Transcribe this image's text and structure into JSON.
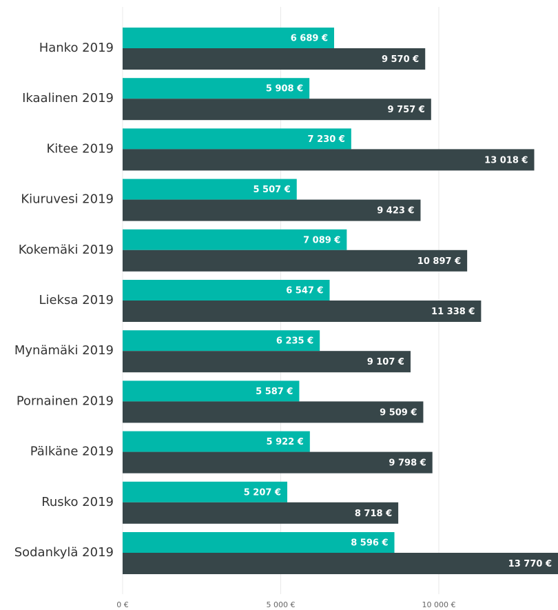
{
  "chart_data": {
    "type": "bar",
    "orientation": "horizontal",
    "categories": [
      "Hanko 2019",
      "Ikaalinen 2019",
      "Kitee 2019",
      "Kiuruvesi 2019",
      "Kokemäki 2019",
      "Lieksa 2019",
      "Mynämäki 2019",
      "Pornainen 2019",
      "Pälkäne 2019",
      "Rusko 2019",
      "Sodankylä 2019"
    ],
    "series": [
      {
        "color": "#01b8aa",
        "values": [
          6689,
          5908,
          7230,
          5507,
          7089,
          6547,
          6235,
          5587,
          5922,
          5207,
          8596
        ],
        "value_labels": [
          "6 689 €",
          "5 908 €",
          "7 230 €",
          "5 507 €",
          "7 089 €",
          "6 547 €",
          "6 235 €",
          "5 587 €",
          "5 922 €",
          "5 207 €",
          "8 596 €"
        ]
      },
      {
        "color": "#374649",
        "values": [
          9570,
          9757,
          13018,
          9423,
          10897,
          11338,
          9107,
          9509,
          9798,
          8718,
          13770
        ],
        "value_labels": [
          "9 570 €",
          "9 757 €",
          "13 018 €",
          "9 423 €",
          "10 897 €",
          "11 338 €",
          "9 107 €",
          "9 509 €",
          "9 798 €",
          "8 718 €",
          "13 770 €"
        ]
      }
    ],
    "xlim": [
      0,
      13770
    ],
    "xticks": [
      {
        "value": 0,
        "label": "0 €"
      },
      {
        "value": 5000,
        "label": "5 000 €"
      },
      {
        "value": 10000,
        "label": "10 000 €"
      }
    ],
    "grid": true
  }
}
